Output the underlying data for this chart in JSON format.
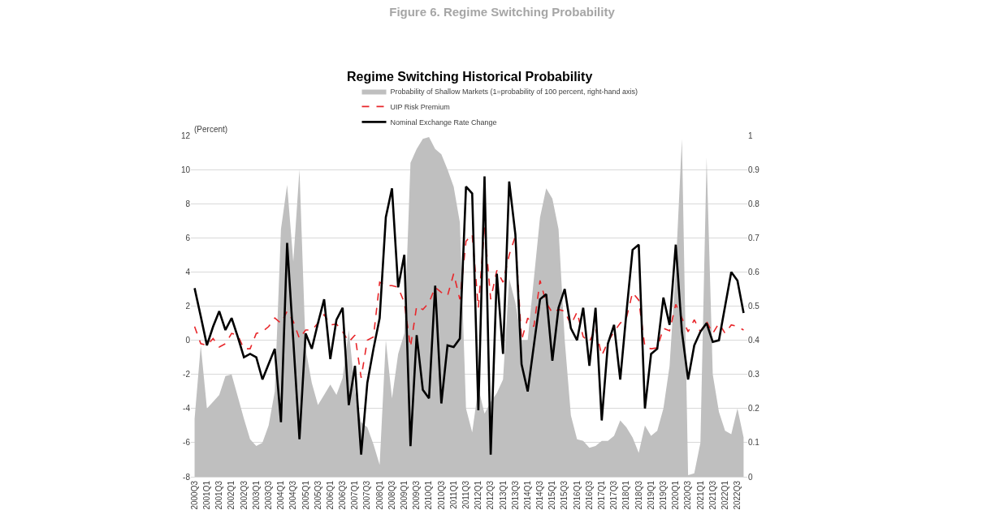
{
  "chart_data": {
    "type": "line",
    "title": "Figure 6. Regime Switching Probability",
    "subtitle": "Regime Switching Historical Probability",
    "ylabel": "(Percent)",
    "categories": [
      "2000Q3",
      null,
      "2001Q1",
      null,
      "2001Q3",
      null,
      "2002Q1",
      null,
      "2002Q3",
      null,
      "2003Q1",
      null,
      "2003Q3",
      null,
      "2004Q1",
      null,
      "2004Q3",
      null,
      "2005Q1",
      null,
      "2005Q3",
      null,
      "2006Q1",
      null,
      "2006Q3",
      null,
      "2007Q1",
      null,
      "2007Q3",
      null,
      "2008Q1",
      null,
      "2008Q3",
      null,
      "2009Q1",
      null,
      "2009Q3",
      null,
      "2010Q1",
      null,
      "2010Q3",
      null,
      "2011Q1",
      null,
      "2011Q3",
      null,
      "2012Q1",
      null,
      "2012Q3",
      null,
      "2013Q1",
      null,
      "2013Q3",
      null,
      "2014Q1",
      null,
      "2014Q3",
      null,
      "2015Q1",
      null,
      "2015Q3",
      null,
      "2016Q1",
      null,
      "2016Q3",
      null,
      "2017Q1",
      null,
      "2017Q3",
      null,
      "2018Q1",
      null,
      "2018Q3",
      null,
      "2019Q1",
      null,
      "2019Q3",
      null,
      "2020Q1",
      null,
      "2020Q3",
      null,
      "2021Q1",
      null,
      "2021Q3",
      null,
      "2022Q1",
      null,
      "2022Q3",
      null
    ],
    "series": [
      {
        "name": "Probability of Shallow Markets (1=probability of 100 percent, right-hand axis)",
        "type": "area",
        "axis": "y2",
        "color": "#bfbfbf",
        "values": [
          0.17,
          0.385,
          0.2,
          0.22,
          0.24,
          0.295,
          0.3,
          0.235,
          0.17,
          0.11,
          0.09,
          0.1,
          0.15,
          0.25,
          0.725,
          0.855,
          0.63,
          0.9,
          0.375,
          0.275,
          0.21,
          0.24,
          0.27,
          0.24,
          0.29,
          0.43,
          0.25,
          0.16,
          0.145,
          0.095,
          0.035,
          0.4,
          0.23,
          0.36,
          0.42,
          0.92,
          0.96,
          0.99,
          0.995,
          0.96,
          0.945,
          0.9,
          0.85,
          0.745,
          0.2,
          0.13,
          0.26,
          0.185,
          0.22,
          0.245,
          0.285,
          0.58,
          0.51,
          0.4,
          0.4,
          0.58,
          0.76,
          0.845,
          0.815,
          0.725,
          0.4,
          0.18,
          0.11,
          0.105,
          0.085,
          0.09,
          0.105,
          0.105,
          0.12,
          0.165,
          0.145,
          0.115,
          0.07,
          0.15,
          0.12,
          0.135,
          0.2,
          0.325,
          0.61,
          0.99,
          0.005,
          0.01,
          0.1,
          0.935,
          0.3,
          0.19,
          0.135,
          0.125,
          0.2,
          0.115
        ]
      },
      {
        "name": "UIP Risk Premium",
        "line_style": "dashed",
        "color": "#e8262a",
        "values": [
          0.8,
          -0.2,
          -0.3,
          0.1,
          -0.4,
          -0.2,
          0.4,
          0.3,
          -0.5,
          -0.5,
          0.4,
          0.5,
          0.8,
          1.3,
          1.0,
          1.7,
          1.1,
          0.1,
          0.6,
          0.6,
          1.0,
          1.5,
          0.9,
          0.95,
          0.5,
          -0.1,
          0.3,
          -2.2,
          0.0,
          0.2,
          3.4,
          3.2,
          3.2,
          3.1,
          2.2,
          -0.4,
          2.0,
          1.8,
          2.2,
          3.1,
          2.8,
          2.6,
          3.9,
          2.4,
          5.8,
          6.2,
          1.9,
          6.6,
          2.4,
          4.1,
          3.4,
          5.0,
          6.1,
          0.0,
          1.3,
          0.8,
          3.5,
          2.2,
          1.6,
          1.8,
          1.7,
          0.9,
          1.65,
          0.2,
          -0.1,
          0.7,
          -0.9,
          -0.1,
          0.5,
          1.0,
          1.3,
          2.8,
          2.35,
          -0.4,
          -0.5,
          -0.45,
          0.7,
          0.55,
          2.1,
          1.3,
          0.5,
          1.2,
          0.5,
          1.1,
          0.4,
          1.0,
          0.4,
          0.9,
          0.8,
          0.6
        ]
      },
      {
        "name": "Nominal Exchange Rate Change",
        "line_style": "solid",
        "color": "#000000",
        "values": [
          3.05,
          1.4,
          -0.3,
          0.8,
          1.7,
          0.6,
          1.3,
          0.2,
          -1.0,
          -0.8,
          -1.0,
          -2.3,
          -1.4,
          -0.5,
          -4.8,
          5.7,
          0.0,
          -5.8,
          0.4,
          -0.5,
          1.0,
          2.4,
          -1.1,
          1.2,
          1.9,
          -3.8,
          -1.5,
          -6.7,
          -2.5,
          -0.5,
          1.3,
          7.2,
          8.9,
          3.1,
          5.0,
          -6.2,
          0.3,
          -2.9,
          -3.4,
          3.2,
          -3.7,
          -0.3,
          -0.4,
          0.1,
          9.0,
          8.6,
          -4.1,
          9.6,
          -6.7,
          3.9,
          -0.8,
          9.3,
          6.2,
          -1.4,
          -3.0,
          -0.3,
          2.4,
          2.7,
          -1.2,
          1.9,
          3.0,
          0.7,
          0.0,
          1.9,
          -1.5,
          1.9,
          -4.7,
          -0.2,
          0.9,
          -2.3,
          1.6,
          5.3,
          5.6,
          -4.0,
          -0.8,
          -0.5,
          2.5,
          0.9,
          5.6,
          0.5,
          -2.3,
          -0.3,
          0.5,
          1.0,
          -0.1,
          0.0,
          2.0,
          4.0,
          3.5,
          1.6
        ]
      }
    ],
    "ylim": [
      -8,
      12
    ],
    "yticks": [
      -8,
      -6,
      -4,
      -2,
      0,
      2,
      4,
      6,
      8,
      10,
      12
    ],
    "y2lim": [
      0,
      1
    ],
    "y2ticks": [
      0,
      0.1,
      0.2,
      0.3,
      0.4,
      0.5,
      0.6,
      0.7,
      0.8,
      0.9,
      1
    ],
    "grid": "y",
    "legend": "top",
    "marker": "none"
  }
}
